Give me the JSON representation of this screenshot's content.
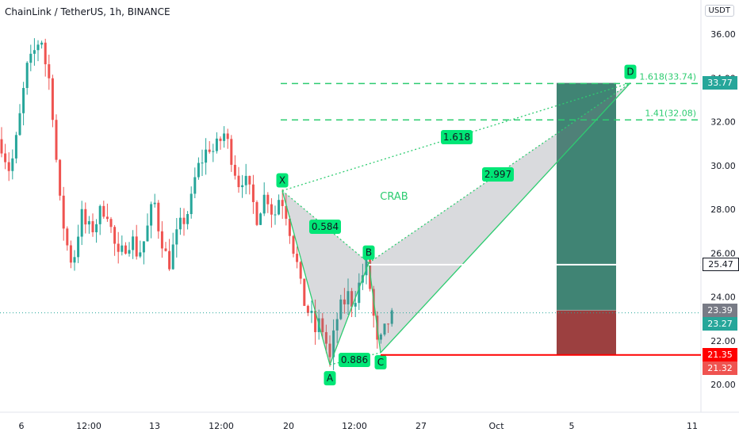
{
  "header": {
    "title": "ChainLink / TetherUS, 1h, BINANCE",
    "unit": "USDT"
  },
  "colors": {
    "candle_up": "#26a69a",
    "candle_down": "#ef5350",
    "pattern_line": "#2ecc71",
    "pattern_fill": "#787b86",
    "label_green": "#00e676",
    "resistance": "#ffffff",
    "stop": "#ff0000",
    "target_zone": "#1e6f5c",
    "stop_zone": "#8b1f1f"
  },
  "chart_data": {
    "type": "candlestick",
    "title": "ChainLink / TetherUS, 1h, BINANCE",
    "ylim": [
      19.4,
      37.2
    ],
    "yticks": [
      20.0,
      22.0,
      24.0,
      26.0,
      28.0,
      30.0,
      32.0,
      34.0,
      36.0
    ],
    "xticks": [
      "6",
      "12:00",
      "13",
      "12:00",
      "20",
      "12:00",
      "27",
      "Oct",
      "5",
      "11"
    ],
    "pattern": {
      "name": "CRAB",
      "points": [
        {
          "label": "X",
          "value": 28.85
        },
        {
          "label": "A",
          "value": 20.9
        },
        {
          "label": "B",
          "value": 25.55
        },
        {
          "label": "C",
          "value": 21.45
        },
        {
          "label": "D",
          "value": 33.77
        }
      ],
      "ratios": [
        "0.584",
        "0.886",
        "2.997",
        "1.618"
      ]
    },
    "levels": [
      {
        "label": "1.618(33.74)",
        "value": 33.74
      },
      {
        "label": "1.41(32.08)",
        "value": 32.08
      },
      {
        "label": "resistance",
        "value": 25.47
      },
      {
        "label": "stop",
        "value": 21.35
      }
    ],
    "price_labels": [
      {
        "text": "33.77",
        "value": 33.77,
        "bg": "#26a69a"
      },
      {
        "text": "25.47",
        "value": 25.47,
        "bg": "#ffffff"
      },
      {
        "text": "23.39",
        "value": 23.39,
        "bg": "#787b86"
      },
      {
        "text": "23.27",
        "value": 23.27,
        "bg": "#26a69a"
      },
      {
        "text": "21.35",
        "value": 21.35,
        "bg": "#ff0000"
      },
      {
        "text": "21.32",
        "value": 21.32,
        "bg": "#ef5350"
      }
    ],
    "last_price": 23.27
  }
}
